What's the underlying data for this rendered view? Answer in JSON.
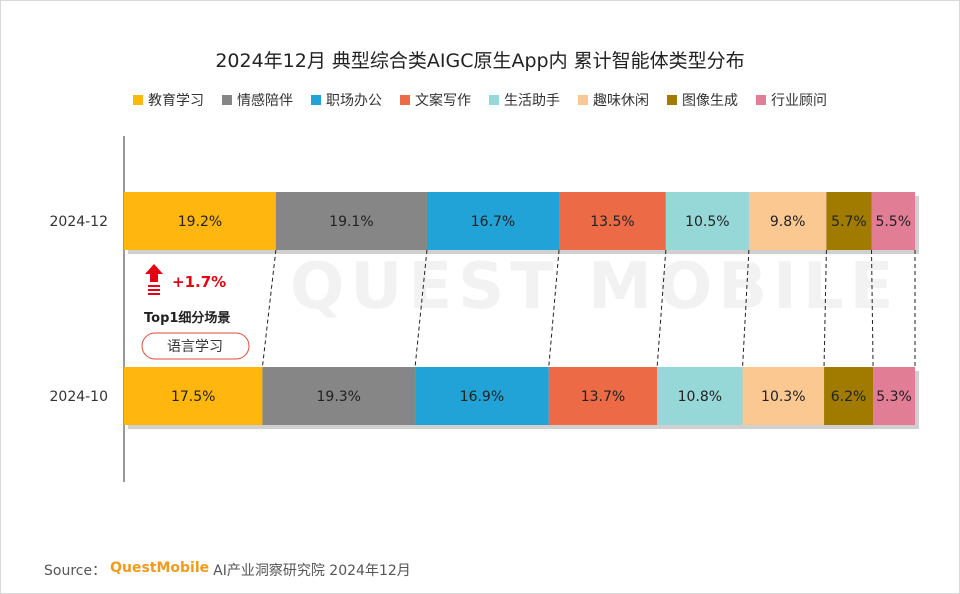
{
  "title": "2024年12月 典型综合类AIGC原生App内 累计智能体类型分布",
  "watermark": "QUEST MOBILE",
  "legend": [
    {
      "name": "教育学习",
      "color": "#ffb60f"
    },
    {
      "name": "情感陪伴",
      "color": "#868686"
    },
    {
      "name": "职场办公",
      "color": "#21a3d7"
    },
    {
      "name": "文案写作",
      "color": "#ed6a46"
    },
    {
      "name": "生活助手",
      "color": "#96d8d8"
    },
    {
      "name": "趣味休闲",
      "color": "#fbc891"
    },
    {
      "name": "图像生成",
      "color": "#a07b00"
    },
    {
      "name": "行业顾问",
      "color": "#e27d96"
    }
  ],
  "chart_data": {
    "type": "bar",
    "orientation": "horizontal-stacked-100",
    "categories": [
      "2024-12",
      "2024-10"
    ],
    "series": [
      {
        "name": "教育学习",
        "values": [
          19.2,
          17.5
        ],
        "labels": [
          "19.2%",
          "17.5%"
        ]
      },
      {
        "name": "情感陪伴",
        "values": [
          19.1,
          19.3
        ],
        "labels": [
          "19.1%",
          "19.3%"
        ]
      },
      {
        "name": "职场办公",
        "values": [
          16.7,
          16.9
        ],
        "labels": [
          "16.7%",
          "16.9%"
        ]
      },
      {
        "name": "文案写作",
        "values": [
          13.5,
          13.7
        ],
        "labels": [
          "13.5%",
          "13.7%"
        ]
      },
      {
        "name": "生活助手",
        "values": [
          10.5,
          10.8
        ],
        "labels": [
          "10.5%",
          "10.8%"
        ]
      },
      {
        "name": "趣味休闲",
        "values": [
          9.8,
          10.3
        ],
        "labels": [
          "9.8%",
          "10.3%"
        ]
      },
      {
        "name": "图像生成",
        "values": [
          5.7,
          6.2
        ],
        "labels": [
          "5.7%",
          "6.2%"
        ]
      },
      {
        "name": "行业顾问",
        "values": [
          5.5,
          5.3
        ],
        "labels": [
          "5.5%",
          "5.3%"
        ]
      }
    ],
    "legend_position": "top"
  },
  "annotation": {
    "change": "+1.7%",
    "caption": "Top1细分场景",
    "tag": "语言学习"
  },
  "source": {
    "prefix": "Source：",
    "brand": "QuestMobile",
    "text": "AI产业洞察研究院 2024年12月"
  }
}
